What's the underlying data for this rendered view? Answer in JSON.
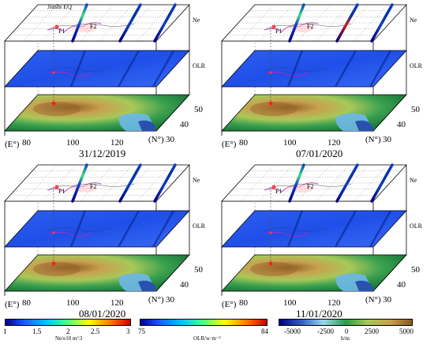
{
  "layers": {
    "ne": "Ne",
    "olr": "OLR"
  },
  "epicenter_label": "Jiashi EQ",
  "regions": {
    "f1": "F1",
    "f2": "F2"
  },
  "axes": {
    "lon_unit": "(E°)",
    "lat_unit": "(N°)",
    "lon_ticks": [
      "80",
      "100",
      "120"
    ],
    "lat_ticks": [
      "30",
      "40",
      "50"
    ]
  },
  "panels": [
    {
      "date": "31/12/2019",
      "show_epicenter_label": true
    },
    {
      "date": "07/01/2020",
      "show_epicenter_label": false
    },
    {
      "date": "08/01/2020",
      "show_epicenter_label": false
    },
    {
      "date": "11/01/2020",
      "show_epicenter_label": false
    }
  ],
  "colorbars": [
    {
      "name": "ne",
      "unit": "Ne/e10 m^3",
      "ticks": [
        "1",
        "1.5",
        "2",
        "2.5",
        "3"
      ],
      "colors": [
        "#00008b",
        "#1e64ff",
        "#00c8ff",
        "#50ff80",
        "#ffff00",
        "#ff8000",
        "#c80000"
      ]
    },
    {
      "name": "olr",
      "unit": "OLR/w·m⁻²",
      "ticks": [
        "75",
        "84"
      ],
      "colors": [
        "#00008b",
        "#1e64ff",
        "#00c8ff",
        "#50ff80",
        "#ffff00",
        "#ff8000",
        "#c80000"
      ]
    },
    {
      "name": "elevation",
      "unit": "h/m",
      "ticks": [
        "-5000",
        "-2500",
        "0",
        "2500",
        "5000"
      ],
      "colors": [
        "#000080",
        "#3060c0",
        "#9ad8f0",
        "#2a9a4a",
        "#a8c858",
        "#c8a050",
        "#8a5a20"
      ]
    }
  ]
}
